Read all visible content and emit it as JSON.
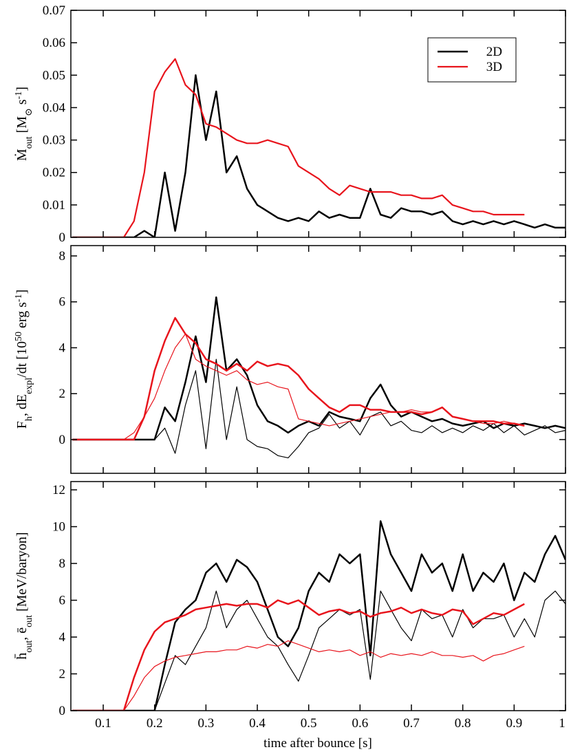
{
  "chart_data": [
    {
      "type": "line",
      "ylabel": [
        "Ṁ",
        "out",
        " [M",
        "⊙",
        " s",
        "-1",
        "]"
      ],
      "x": [
        0.04,
        0.06,
        0.08,
        0.1,
        0.12,
        0.14,
        0.16,
        0.18,
        0.2,
        0.22,
        0.24,
        0.26,
        0.28,
        0.3,
        0.32,
        0.34,
        0.36,
        0.38,
        0.4,
        0.42,
        0.44,
        0.46,
        0.48,
        0.5,
        0.52,
        0.54,
        0.56,
        0.58,
        0.6,
        0.62,
        0.64,
        0.66,
        0.68,
        0.7,
        0.72,
        0.74,
        0.76,
        0.78,
        0.8,
        0.82,
        0.84,
        0.86,
        0.88,
        0.9,
        0.92,
        0.94,
        0.96,
        0.98,
        1.0
      ],
      "xlim": [
        0.037,
        1
      ],
      "xticks": [
        0.1,
        0.2,
        0.3,
        0.4,
        0.5,
        0.6,
        0.7,
        0.8,
        0.9,
        1
      ],
      "x_tick_labels": false,
      "ylim": [
        0,
        0.07
      ],
      "yticks": [
        0,
        0.01,
        0.02,
        0.03,
        0.04,
        0.05,
        0.06,
        0.07
      ],
      "legend": "upper right",
      "series": [
        {
          "name": "2D",
          "color": "#000000",
          "linewidth": 2.5,
          "values": [
            0,
            0,
            0,
            0,
            0,
            0,
            0,
            0.002,
            0,
            0.02,
            0.002,
            0.02,
            0.05,
            0.03,
            0.045,
            0.02,
            0.025,
            0.015,
            0.01,
            0.008,
            0.006,
            0.005,
            0.006,
            0.005,
            0.008,
            0.006,
            0.007,
            0.006,
            0.006,
            0.015,
            0.007,
            0.006,
            0.009,
            0.008,
            0.008,
            0.007,
            0.008,
            0.005,
            0.004,
            0.005,
            0.004,
            0.005,
            0.004,
            0.005,
            0.004,
            0.003,
            0.004,
            0.003,
            0.003
          ]
        },
        {
          "name": "3D",
          "color": "#e8141c",
          "linewidth": 2.2,
          "values": [
            0,
            0,
            0,
            0,
            0,
            0,
            0.005,
            0.02,
            0.045,
            0.051,
            0.055,
            0.047,
            0.044,
            0.035,
            0.034,
            0.032,
            0.03,
            0.029,
            0.029,
            0.03,
            0.029,
            0.028,
            0.022,
            0.02,
            0.018,
            0.015,
            0.013,
            0.016,
            0.015,
            0.014,
            0.014,
            0.014,
            0.013,
            0.013,
            0.012,
            0.012,
            0.013,
            0.01,
            0.009,
            0.008,
            0.008,
            0.007,
            0.007,
            0.007,
            0.007,
            null,
            null,
            null,
            null
          ]
        }
      ]
    },
    {
      "type": "line",
      "ylabel": [
        "F",
        "h",
        ", dE",
        "expl",
        "/dt [10",
        "50",
        " erg s",
        "-1",
        "]"
      ],
      "x": [
        0.04,
        0.06,
        0.08,
        0.1,
        0.12,
        0.14,
        0.16,
        0.18,
        0.2,
        0.22,
        0.24,
        0.26,
        0.28,
        0.3,
        0.32,
        0.34,
        0.36,
        0.38,
        0.4,
        0.42,
        0.44,
        0.46,
        0.48,
        0.5,
        0.52,
        0.54,
        0.56,
        0.58,
        0.6,
        0.62,
        0.64,
        0.66,
        0.68,
        0.7,
        0.72,
        0.74,
        0.76,
        0.78,
        0.8,
        0.82,
        0.84,
        0.86,
        0.88,
        0.9,
        0.92,
        0.94,
        0.96,
        0.98,
        1.0
      ],
      "xlim": [
        0.037,
        1
      ],
      "xticks": [
        0.1,
        0.2,
        0.3,
        0.4,
        0.5,
        0.6,
        0.7,
        0.8,
        0.9,
        1
      ],
      "x_tick_labels": false,
      "ylim": [
        -1.47,
        8.45
      ],
      "yticks": [
        0,
        2,
        4,
        6,
        8
      ],
      "series": [
        {
          "color": "#000000",
          "linewidth": 2.5,
          "values": [
            0,
            0,
            0,
            0,
            0,
            0,
            0,
            0,
            0,
            1.4,
            0.8,
            2.5,
            4.5,
            2.5,
            6.2,
            3.0,
            3.5,
            2.8,
            1.5,
            0.8,
            0.6,
            0.3,
            0.6,
            0.8,
            0.6,
            1.2,
            1.0,
            0.9,
            0.8,
            1.8,
            2.4,
            1.5,
            1.0,
            1.2,
            1.0,
            0.8,
            0.9,
            0.7,
            0.6,
            0.7,
            0.8,
            0.5,
            0.7,
            0.6,
            0.7,
            0.6,
            0.5,
            0.6,
            0.5
          ]
        },
        {
          "color": "#000000",
          "linewidth": 1.2,
          "values": [
            0,
            0,
            0,
            0,
            0,
            0,
            0,
            0,
            0,
            0.5,
            -0.6,
            1.5,
            3.0,
            -0.4,
            3.5,
            0,
            2.3,
            0,
            -0.3,
            -0.4,
            -0.7,
            -0.8,
            -0.3,
            0.3,
            0.5,
            1.1,
            0.5,
            0.8,
            0.2,
            1.0,
            1.2,
            0.6,
            0.8,
            0.4,
            0.3,
            0.6,
            0.3,
            0.5,
            0.3,
            0.6,
            0.4,
            0.7,
            0.3,
            0.6,
            0.2,
            0.4,
            0.6,
            0.3,
            0.4
          ]
        },
        {
          "color": "#e8141c",
          "linewidth": 2.5,
          "values": [
            0,
            0,
            0,
            0,
            0,
            0,
            0,
            1.0,
            3.0,
            4.3,
            5.3,
            4.6,
            4.2,
            3.5,
            3.3,
            3.0,
            3.3,
            3.0,
            3.4,
            3.2,
            3.3,
            3.2,
            2.8,
            2.2,
            1.8,
            1.4,
            1.2,
            1.5,
            1.5,
            1.3,
            1.3,
            1.2,
            1.2,
            1.2,
            1.1,
            1.2,
            1.4,
            1.0,
            0.9,
            0.8,
            0.8,
            0.8,
            0.7,
            0.7,
            0.6,
            null,
            null,
            null,
            null
          ]
        },
        {
          "color": "#e8141c",
          "linewidth": 1.2,
          "values": [
            0,
            0,
            0,
            0,
            0,
            0,
            0.3,
            1.0,
            1.8,
            3.0,
            4.0,
            4.6,
            3.5,
            3.2,
            3.0,
            2.8,
            3.0,
            2.6,
            2.4,
            2.5,
            2.3,
            2.2,
            0.9,
            0.8,
            0.7,
            0.6,
            0.7,
            0.8,
            0.9,
            1.0,
            1.1,
            1.2,
            1.2,
            1.3,
            1.2,
            1.2,
            1.4,
            1.0,
            0.9,
            0.8,
            0.7,
            0.7,
            0.8,
            0.7,
            0.6,
            null,
            null,
            null,
            null
          ]
        }
      ]
    },
    {
      "type": "line",
      "ylabel": [
        "h̄",
        "out",
        ", ē",
        "out",
        " [MeV/baryon]"
      ],
      "xlabel": "time after bounce [s]",
      "x": [
        0.04,
        0.06,
        0.08,
        0.1,
        0.12,
        0.14,
        0.16,
        0.18,
        0.2,
        0.22,
        0.24,
        0.26,
        0.28,
        0.3,
        0.32,
        0.34,
        0.36,
        0.38,
        0.4,
        0.42,
        0.44,
        0.46,
        0.48,
        0.5,
        0.52,
        0.54,
        0.56,
        0.58,
        0.6,
        0.62,
        0.64,
        0.66,
        0.68,
        0.7,
        0.72,
        0.74,
        0.76,
        0.78,
        0.8,
        0.82,
        0.84,
        0.86,
        0.88,
        0.9,
        0.92,
        0.94,
        0.96,
        0.98,
        1.0
      ],
      "xlim": [
        0.037,
        1
      ],
      "xticks": [
        0.1,
        0.2,
        0.3,
        0.4,
        0.5,
        0.6,
        0.7,
        0.8,
        0.9,
        1
      ],
      "x_tick_labels": true,
      "ylim": [
        0,
        12.45
      ],
      "yticks": [
        0,
        2,
        4,
        6,
        8,
        10,
        12
      ],
      "series": [
        {
          "color": "#000000",
          "linewidth": 2.5,
          "values": [
            0,
            0,
            0,
            0,
            0,
            0,
            0,
            0,
            0,
            2.5,
            4.8,
            5.5,
            6.0,
            7.5,
            8.0,
            7.0,
            8.2,
            7.8,
            7.0,
            5.5,
            4.0,
            3.5,
            4.5,
            6.5,
            7.5,
            7.0,
            8.5,
            8.0,
            8.5,
            3.0,
            10.3,
            8.5,
            7.5,
            6.5,
            8.5,
            7.5,
            8.0,
            6.5,
            8.5,
            6.5,
            7.5,
            7.0,
            8.0,
            6.0,
            7.5,
            7.0,
            8.5,
            9.5,
            8.2
          ]
        },
        {
          "color": "#000000",
          "linewidth": 1.2,
          "values": [
            0,
            0,
            0,
            0,
            0,
            0,
            0,
            0,
            0,
            1.5,
            3.0,
            2.5,
            3.5,
            4.5,
            6.5,
            4.5,
            5.5,
            6.0,
            5.0,
            4.0,
            3.5,
            2.5,
            1.6,
            3.0,
            4.5,
            5.0,
            5.5,
            5.2,
            5.5,
            1.7,
            6.5,
            5.5,
            4.5,
            3.8,
            5.5,
            5.0,
            5.2,
            4.0,
            5.5,
            4.5,
            5.0,
            5.0,
            5.2,
            4.0,
            5.0,
            4.0,
            6.0,
            6.5,
            5.8
          ]
        },
        {
          "color": "#e8141c",
          "linewidth": 2.5,
          "values": [
            0,
            0,
            0,
            0,
            0,
            0,
            1.8,
            3.3,
            4.3,
            4.8,
            5.0,
            5.2,
            5.5,
            5.6,
            5.7,
            5.8,
            5.7,
            5.8,
            5.8,
            5.6,
            6.0,
            5.8,
            6.0,
            5.6,
            5.2,
            5.4,
            5.5,
            5.3,
            5.4,
            5.1,
            5.3,
            5.4,
            5.6,
            5.3,
            5.5,
            5.3,
            5.2,
            5.5,
            5.4,
            4.7,
            5.0,
            5.3,
            5.2,
            5.5,
            5.8,
            null,
            null,
            null,
            null
          ]
        },
        {
          "color": "#e8141c",
          "linewidth": 1.2,
          "values": [
            0,
            0,
            0,
            0,
            0,
            0,
            0.8,
            1.8,
            2.4,
            2.7,
            2.9,
            3.0,
            3.1,
            3.2,
            3.2,
            3.3,
            3.3,
            3.5,
            3.4,
            3.6,
            3.5,
            3.8,
            3.6,
            3.4,
            3.2,
            3.3,
            3.2,
            3.3,
            3.0,
            3.2,
            2.9,
            3.1,
            3.0,
            3.1,
            3.0,
            3.2,
            3.0,
            3.0,
            2.9,
            3.0,
            2.7,
            3.0,
            3.1,
            3.3,
            3.5,
            null,
            null,
            null,
            null
          ]
        }
      ]
    }
  ]
}
